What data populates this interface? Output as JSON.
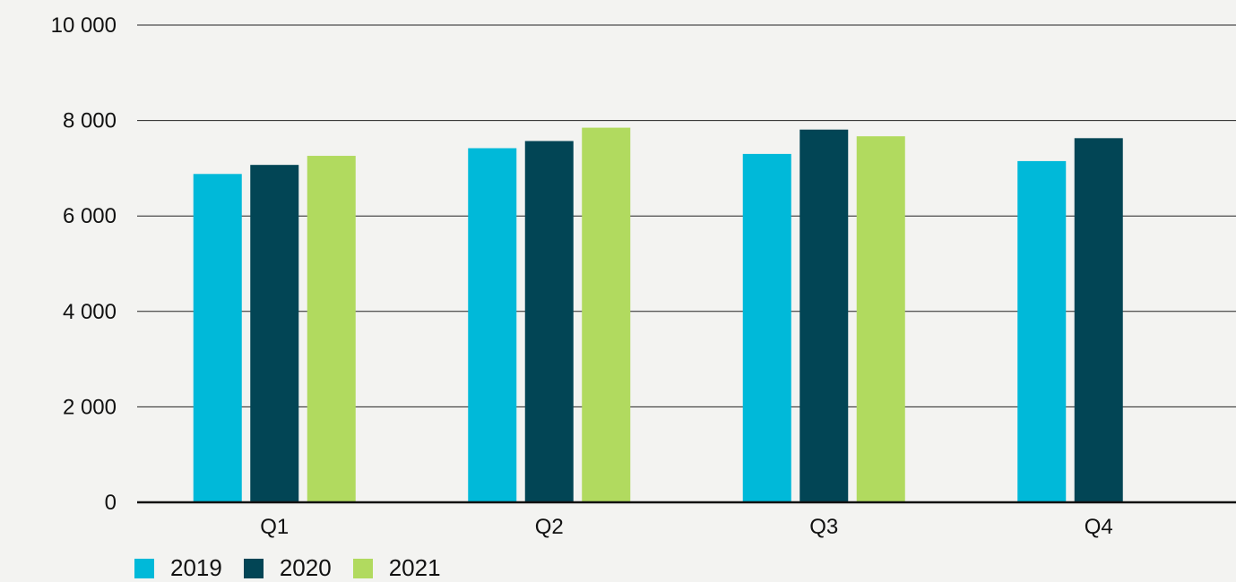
{
  "chart_data": {
    "type": "bar",
    "categories": [
      "Q1",
      "Q2",
      "Q3",
      "Q4"
    ],
    "series": [
      {
        "name": "2019",
        "color": "#00b9d9",
        "values": [
          6880,
          7420,
          7300,
          7150
        ]
      },
      {
        "name": "2020",
        "color": "#024555",
        "values": [
          7070,
          7570,
          7810,
          7630
        ]
      },
      {
        "name": "2021",
        "color": "#b1da5f",
        "values": [
          7260,
          7850,
          7670,
          null
        ]
      }
    ],
    "y_ticks": [
      0,
      2000,
      4000,
      6000,
      8000,
      10000
    ],
    "y_tick_labels": [
      "0",
      "2 000",
      "4 000",
      "6 000",
      "8 000",
      "10 000"
    ],
    "ylim": [
      0,
      10000
    ],
    "grid": true,
    "legend_position": "bottom-left",
    "title": "",
    "xlabel": "",
    "ylabel": ""
  }
}
